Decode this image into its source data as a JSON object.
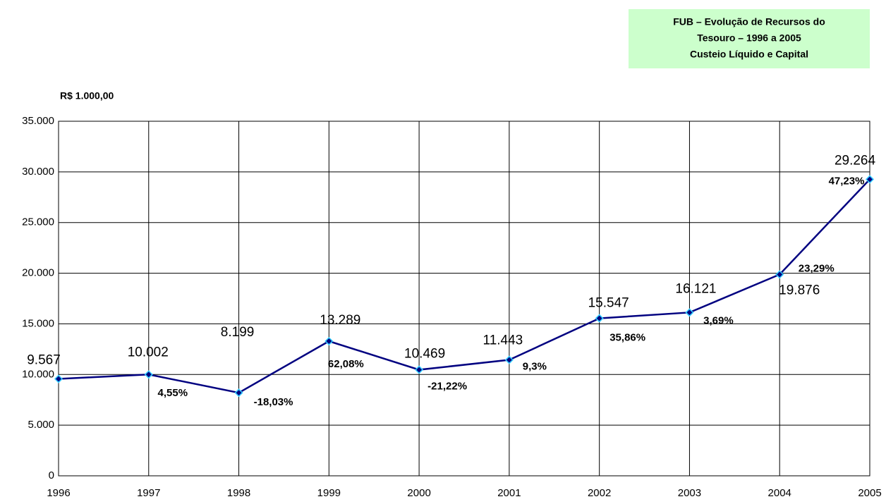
{
  "chart_data": {
    "type": "line",
    "title": [
      "FUB – Evolução de Recursos do",
      "Tesouro – 1996 a 2005",
      "Custeio Líquido e Capital"
    ],
    "y_label": "R$ 1.000,00",
    "categories": [
      "1996",
      "1997",
      "1998",
      "1999",
      "2000",
      "2001",
      "2002",
      "2003",
      "2004",
      "2005"
    ],
    "series": [
      {
        "name": "Recursos do Tesouro",
        "color": "#000080",
        "marker_color": "#33ccff",
        "values": [
          9567,
          10002,
          8199,
          13289,
          10469,
          11443,
          15547,
          16121,
          19876,
          29264
        ],
        "value_labels": [
          "9.567",
          "10.002",
          "8.199",
          "13.289",
          "10.469",
          "11.443",
          "15.547",
          "16.121",
          "19.876",
          "29.264"
        ]
      }
    ],
    "annotations": [
      "4,55%",
      "-18,03%",
      "62,08%",
      "-21,22%",
      "9,3%",
      "35,86%",
      "3,69%",
      "23,29%",
      "47,23%"
    ],
    "ylim": [
      0,
      35000
    ],
    "yticks": [
      {
        "value": 0,
        "label": "0"
      },
      {
        "value": 5000,
        "label": "5.000"
      },
      {
        "value": 10000,
        "label": "10.000"
      },
      {
        "value": 15000,
        "label": "15.000"
      },
      {
        "value": 20000,
        "label": "20.000"
      },
      {
        "value": 25000,
        "label": "25.000"
      },
      {
        "value": 30000,
        "label": "30.000"
      },
      {
        "value": 35000,
        "label": "35.000"
      }
    ],
    "grid": true
  }
}
